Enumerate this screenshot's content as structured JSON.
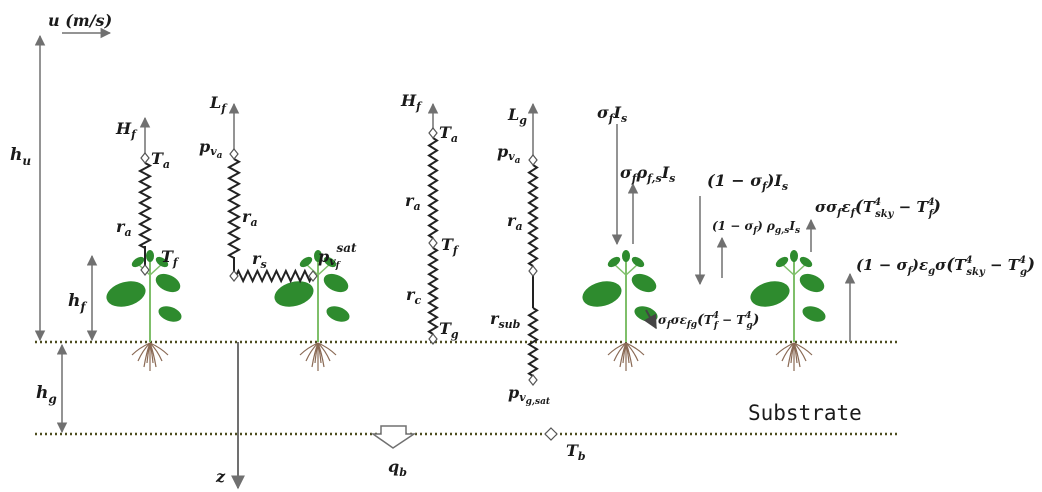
{
  "velocity": {
    "base": "u",
    "unit": " (m/s)"
  },
  "heights": {
    "canopy": "u",
    "foliage": "f",
    "ground": "g"
  },
  "depth_axis": "z",
  "substrate": "Substrate",
  "bottom": {
    "temperature": "b",
    "heat_flux": "b"
  },
  "symbols": {
    "H": "H",
    "L": "L",
    "T": "T",
    "p": "p",
    "q": "q",
    "h": "h",
    "r": "r",
    "v": "v",
    "sigma": "σ",
    "rho": "ρ",
    "eps": "ε",
    "I": "I",
    "one_minus": "(1 − ",
    "close": ")"
  },
  "subs": {
    "a": "a",
    "f": "f",
    "g": "g",
    "c": "c",
    "s": "s",
    "b": "b",
    "sub": "sub",
    "sat": "sat",
    "g_sat": "g,sat",
    "f_s": "f,s",
    "g_s": "g,s",
    "fg": "fg",
    "sky": "sky",
    "four": "4",
    "minus": " − ",
    "lparen": "(",
    "rparen": ")"
  },
  "colors": {
    "leaf": "#2e8b2e",
    "leaf_dark": "#1f6b1f",
    "stem": "#7fbf6a",
    "root": "#8a6a55",
    "ground_line": "#4d4d1f",
    "arrow": "#707070",
    "text": "#1a1a1a"
  }
}
